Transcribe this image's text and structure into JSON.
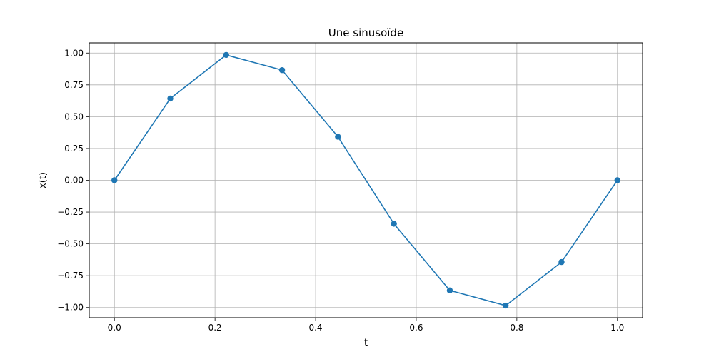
{
  "chart_data": {
    "type": "line",
    "title": "Une sinusoïde",
    "xlabel": "t",
    "ylabel": "x(t)",
    "xlim": [
      -0.05,
      1.05
    ],
    "ylim": [
      -1.08,
      1.08
    ],
    "grid": true,
    "x_ticks": [
      0.0,
      0.2,
      0.4,
      0.6,
      0.8,
      1.0
    ],
    "x_tick_labels": [
      "0.0",
      "0.2",
      "0.4",
      "0.6",
      "0.8",
      "1.0"
    ],
    "y_ticks": [
      1.0,
      0.75,
      0.5,
      0.25,
      0.0,
      -0.25,
      -0.5,
      -0.75,
      -1.0
    ],
    "y_tick_labels": [
      "1.00",
      "0.75",
      "0.50",
      "0.25",
      "0.00",
      "−0.25",
      "−0.50",
      "−0.75",
      "−1.00"
    ],
    "series": [
      {
        "color": "#1f77b4",
        "marker": "circle",
        "x": [
          0.0,
          0.1111,
          0.2222,
          0.3333,
          0.4444,
          0.5556,
          0.6667,
          0.7778,
          0.8889,
          1.0
        ],
        "y": [
          0.0,
          0.643,
          0.985,
          0.866,
          0.342,
          -0.342,
          -0.866,
          -0.985,
          -0.643,
          0.0
        ]
      }
    ]
  }
}
